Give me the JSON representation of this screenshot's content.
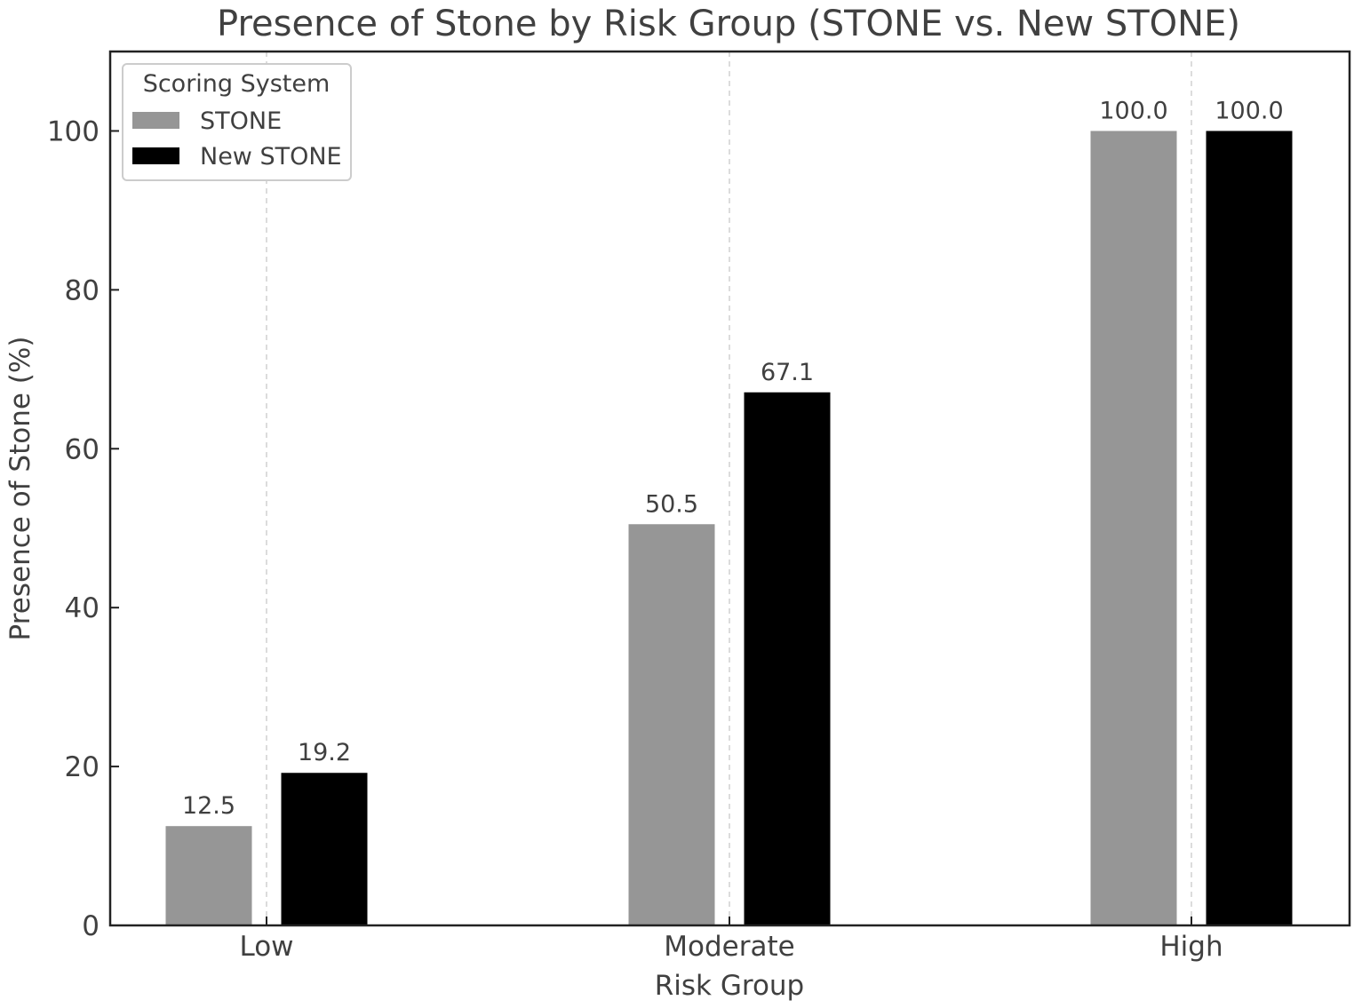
{
  "chart_data": {
    "type": "bar",
    "title": "Presence of Stone by Risk Group (STONE vs. New STONE)",
    "xlabel": "Risk Group",
    "ylabel": "Presence of Stone (%)",
    "categories": [
      "Low",
      "Moderate",
      "High"
    ],
    "series": [
      {
        "name": "STONE",
        "values": [
          12.5,
          50.5,
          100.0
        ],
        "color": "#969696"
      },
      {
        "name": "New STONE",
        "values": [
          19.2,
          67.1,
          100.0
        ],
        "color": "#000000"
      }
    ],
    "data_labels": [
      [
        "12.5",
        "50.5",
        "100.0"
      ],
      [
        "19.2",
        "67.1",
        "100.0"
      ]
    ],
    "ylim": [
      0,
      110
    ],
    "yticks": [
      0,
      20,
      40,
      60,
      80,
      100
    ],
    "ytick_labels": [
      "0",
      "20",
      "40",
      "60",
      "80",
      "100"
    ],
    "grid": "vertical dashed at categories",
    "legend": {
      "title": "Scoring System",
      "placement": "top-left"
    },
    "colors": {
      "text": "#404040",
      "axis": "#222222",
      "grid": "#d0d0d0",
      "legend_border": "#cccccc"
    }
  }
}
